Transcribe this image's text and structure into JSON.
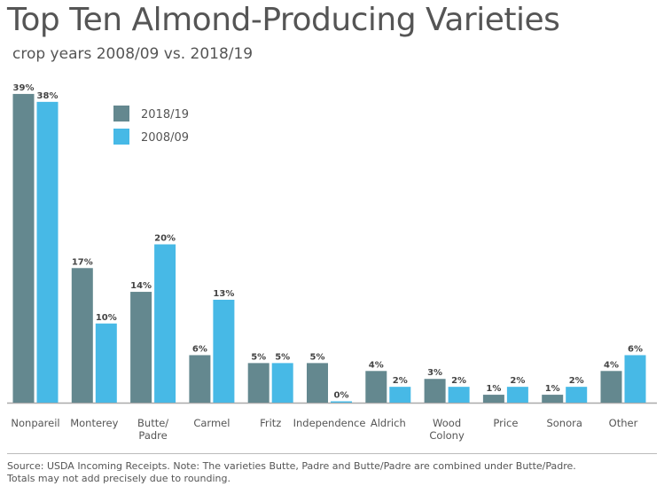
{
  "colors": {
    "series_2018": "#64888f",
    "series_2008": "#47b9e6",
    "axis": "#aaaaaa",
    "text": "#555555"
  },
  "chart_data": {
    "type": "bar",
    "title": "Top Ten Almond-Producing Varieties",
    "subtitle": "crop years 2008/09 vs. 2018/19",
    "categories": [
      "Nonpareil",
      "Monterey",
      "Butte/\nPadre",
      "Carmel",
      "Fritz",
      "Independence",
      "Aldrich",
      "Wood\nColony",
      "Price",
      "Sonora",
      "Other"
    ],
    "series": [
      {
        "name": "2018/19",
        "values": [
          39,
          17,
          14,
          6,
          5,
          5,
          4,
          3,
          1,
          1,
          4
        ],
        "labels": [
          "39%",
          "17%",
          "14%",
          "6%",
          "5%",
          "5%",
          "4%",
          "3%",
          "1%",
          "1%",
          "4%"
        ]
      },
      {
        "name": "2008/09",
        "values": [
          38,
          10,
          20,
          13,
          5,
          0,
          2,
          2,
          2,
          2,
          6
        ],
        "labels": [
          "38%",
          "10%",
          "20%",
          "13%",
          "5%",
          "0%",
          "2%",
          "2%",
          "2%",
          "2%",
          "6%"
        ]
      }
    ],
    "ylim": [
      0,
      40
    ],
    "legend": "top-left",
    "grid": false
  },
  "source": {
    "line1": "Source: USDA Incoming Receipts. Note: The varieties Butte, Padre and Butte/Padre are combined under Butte/Padre.",
    "line2": "Totals may not add precisely due to rounding."
  }
}
